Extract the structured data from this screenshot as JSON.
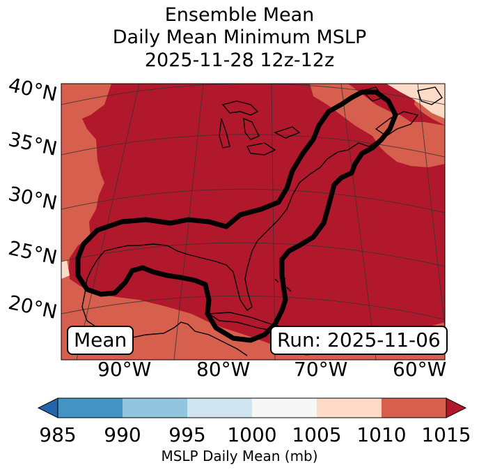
{
  "title": {
    "line1": "Ensemble Mean",
    "line2": "Daily Mean Minimum MSLP",
    "line3": "2025-11-28 12z-12z"
  },
  "map": {
    "lat_labels": [
      "40°N",
      "35°N",
      "30°N",
      "25°N",
      "20°N"
    ],
    "lon_labels": [
      "90°W",
      "80°W",
      "70°W",
      "60°W"
    ],
    "mean_label": "Mean",
    "run_label": "Run: 2025-11-06",
    "contour_color": "#000000",
    "coastline_color": "#000000",
    "gridline_color": "#333333"
  },
  "colorbar": {
    "label": "MSLP Daily Mean (mb)",
    "ticks": [
      "985",
      "990",
      "995",
      "1000",
      "1005",
      "1010",
      "1015"
    ],
    "colors": {
      "below": "#2166ac",
      "985_990": "#4393c3",
      "990_995": "#92c5de",
      "995_1000": "#d1e5f0",
      "1000_1005": "#f7f7f7",
      "1005_1010": "#fddbc7",
      "1010_1015": "#d6604d",
      "above": "#b2182b"
    }
  }
}
